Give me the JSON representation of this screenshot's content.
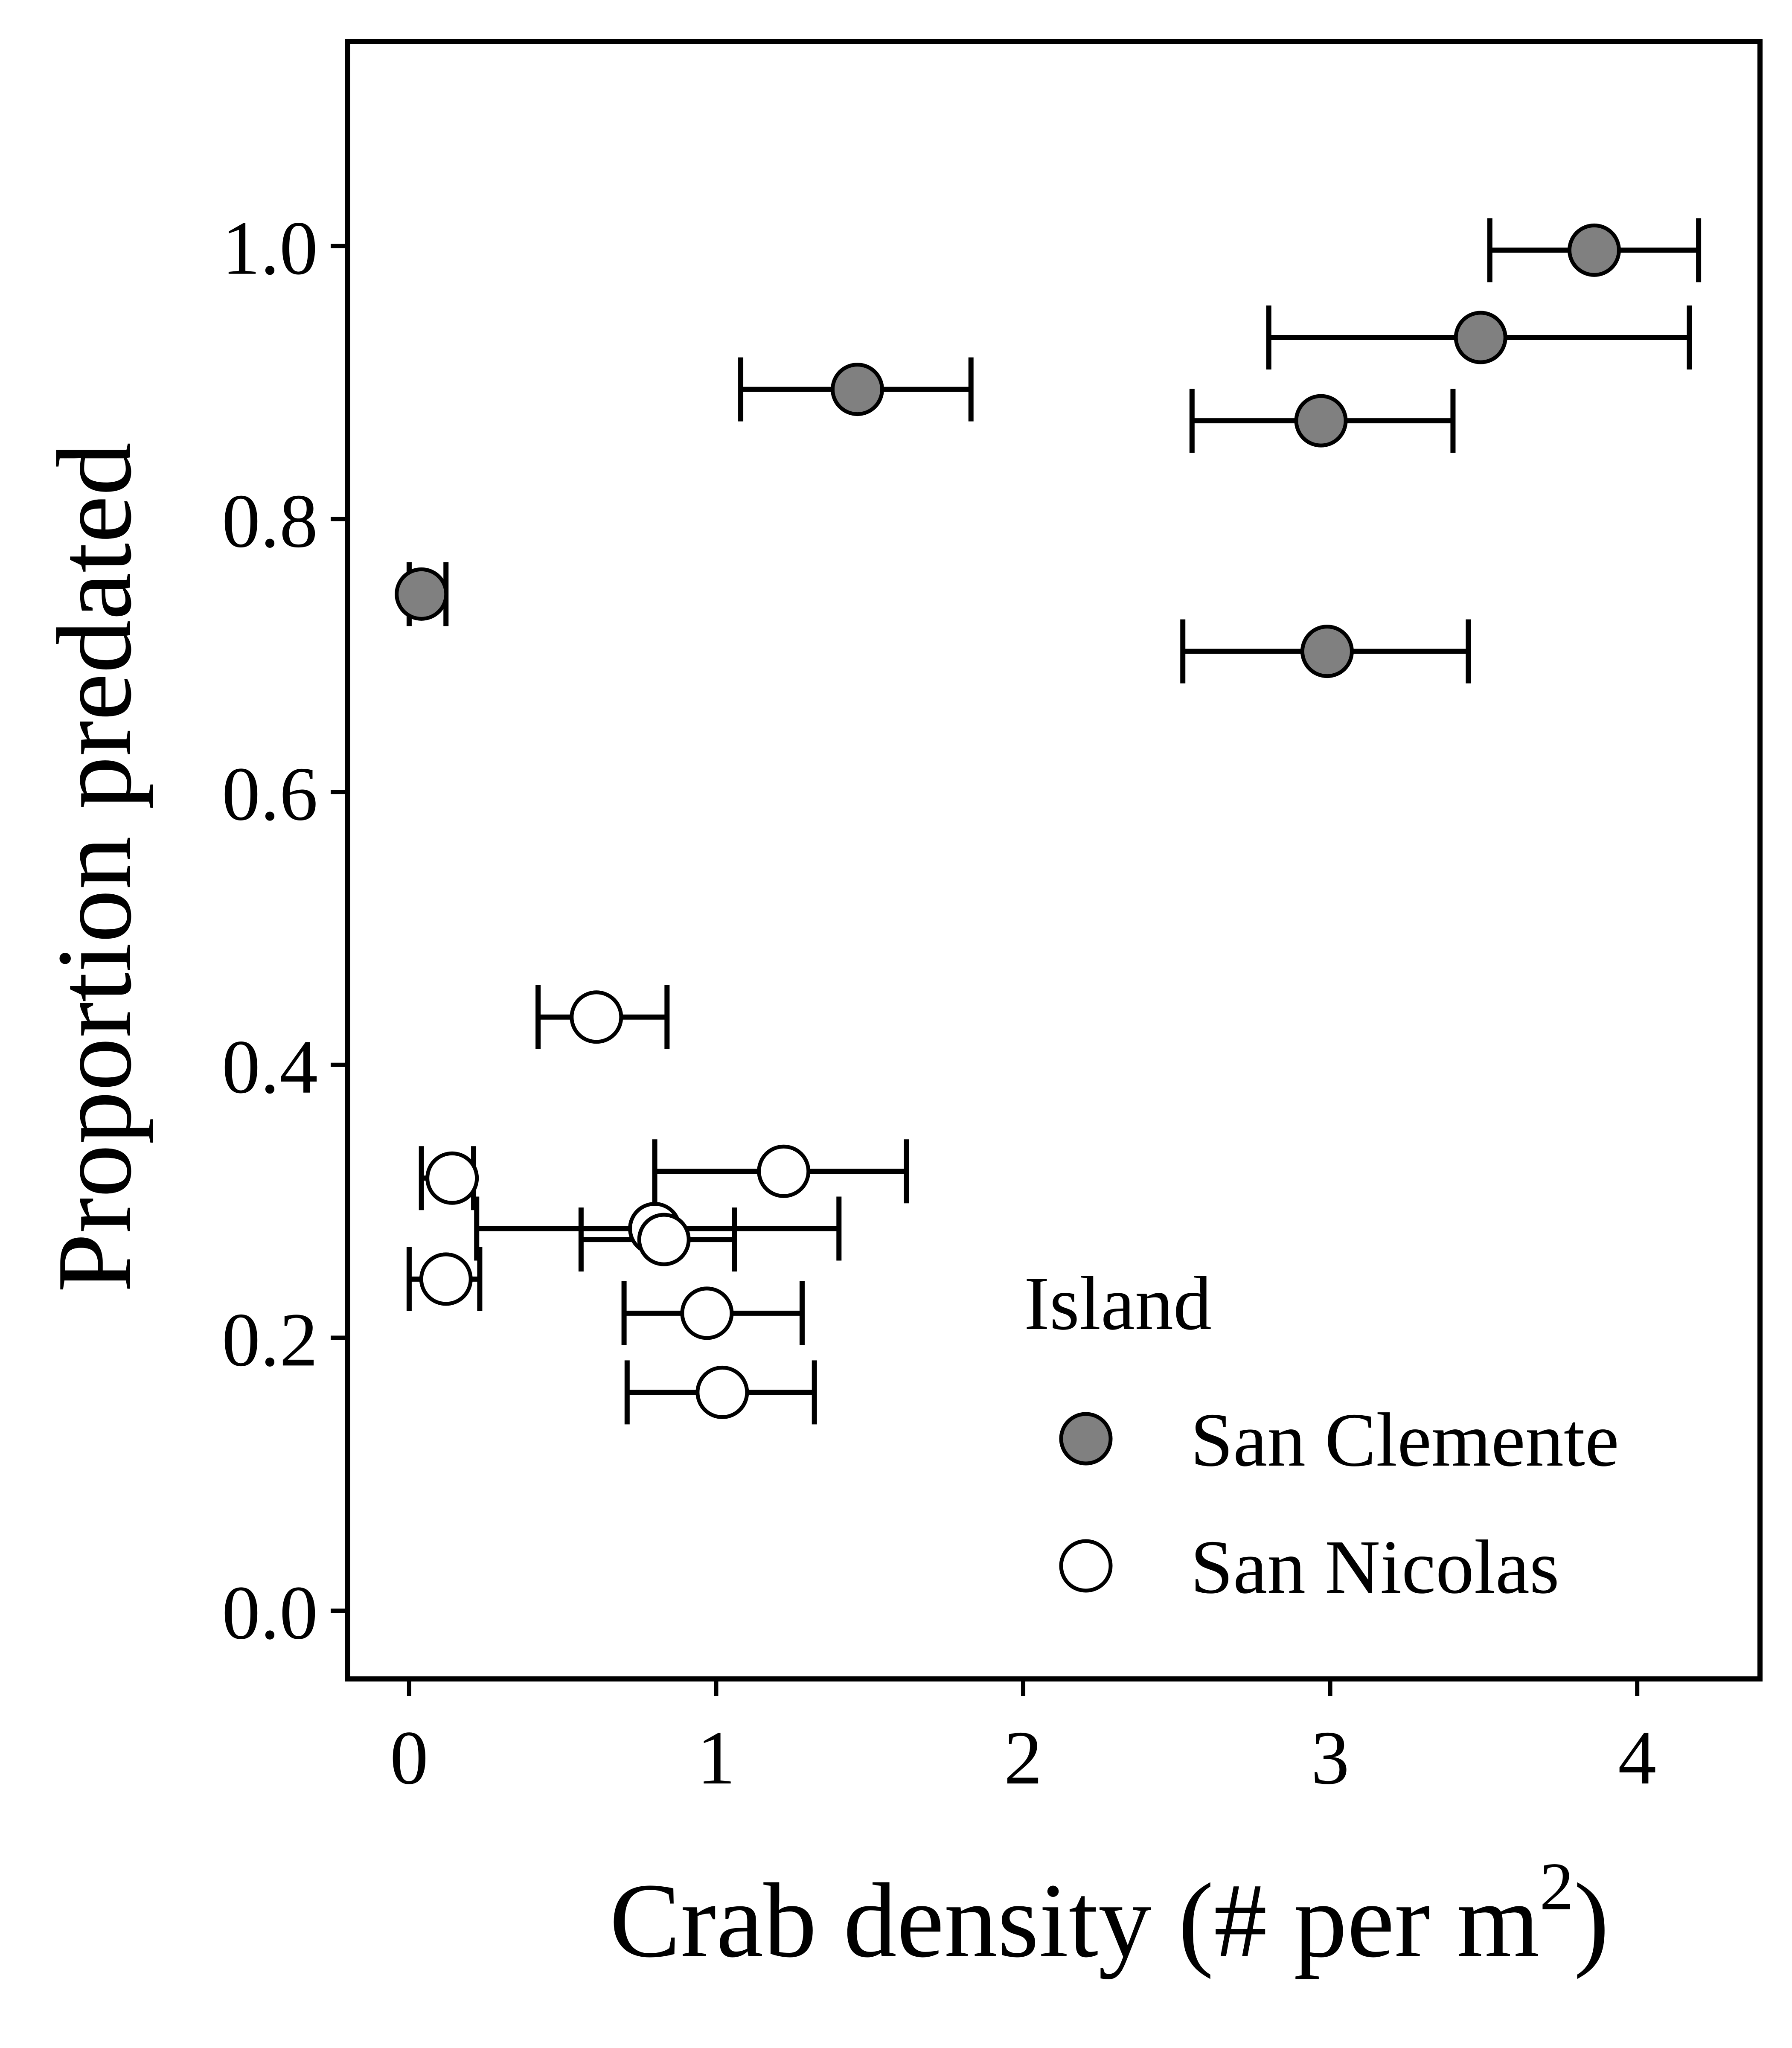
{
  "chart_data": {
    "type": "scatter",
    "xlabel": "Crab density (# per m",
    "xlabel_sup": "2",
    "xlabel_end": ")",
    "ylabel": "Proportion predated",
    "xlim": [
      -0.2,
      4.4
    ],
    "ylim": [
      -0.05,
      1.15
    ],
    "x_ticks": [
      "0",
      "1",
      "2",
      "3",
      "4"
    ],
    "y_ticks": [
      "0.0",
      "0.2",
      "0.4",
      "0.6",
      "0.8",
      "1.0"
    ],
    "grid": false,
    "legend_position": "bottom-right",
    "legend": {
      "title": "Island",
      "items": [
        "San Clemente",
        "San Nicolas"
      ]
    },
    "series": [
      {
        "name": "San Clemente",
        "fill": "#808080",
        "points": [
          {
            "x": 0.04,
            "y": 0.745,
            "xerr_low": 0.0,
            "xerr_high": 0.12
          },
          {
            "x": 1.46,
            "y": 0.895,
            "xerr_low": 1.08,
            "xerr_high": 1.83
          },
          {
            "x": 2.97,
            "y": 0.872,
            "xerr_low": 2.55,
            "xerr_high": 3.4
          },
          {
            "x": 2.99,
            "y": 0.703,
            "xerr_low": 2.52,
            "xerr_high": 3.45
          },
          {
            "x": 3.49,
            "y": 0.933,
            "xerr_low": 2.8,
            "xerr_high": 4.17
          },
          {
            "x": 3.86,
            "y": 0.997,
            "xerr_low": 3.52,
            "xerr_high": 4.2
          }
        ]
      },
      {
        "name": "San Nicolas",
        "fill": "#ffffff",
        "points": [
          {
            "x": 0.61,
            "y": 0.435,
            "xerr_low": 0.42,
            "xerr_high": 0.84
          },
          {
            "x": 1.22,
            "y": 0.322,
            "xerr_low": 0.8,
            "xerr_high": 1.62
          },
          {
            "x": 0.14,
            "y": 0.317,
            "xerr_low": 0.04,
            "xerr_high": 0.21
          },
          {
            "x": 0.8,
            "y": 0.28,
            "xerr_low": 0.22,
            "xerr_high": 1.4
          },
          {
            "x": 0.83,
            "y": 0.272,
            "xerr_low": 0.56,
            "xerr_high": 1.06
          },
          {
            "x": 0.12,
            "y": 0.243,
            "xerr_low": 0.0,
            "xerr_high": 0.23
          },
          {
            "x": 0.97,
            "y": 0.218,
            "xerr_low": 0.7,
            "xerr_high": 1.28
          },
          {
            "x": 1.02,
            "y": 0.16,
            "xerr_low": 0.71,
            "xerr_high": 1.32
          }
        ]
      }
    ]
  }
}
